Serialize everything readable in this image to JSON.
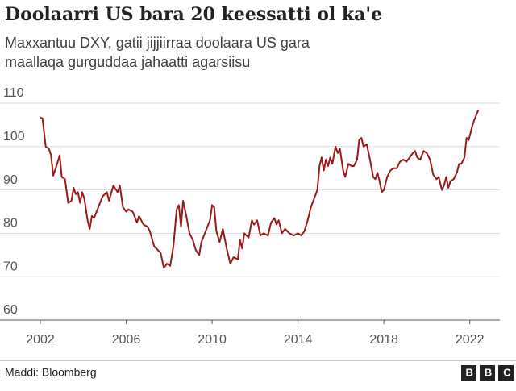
{
  "chart_data": {
    "type": "line",
    "title": "Doolaarri US bara 20 keessatti ol ka'e",
    "subtitle": "Maxxantuu DXY, gatii jijjiirraa doolaara US gara maallaqa gurguddaa jahaatti agarsiisu",
    "source": "Maddi: Bloomberg",
    "logo": "BBC",
    "xlim": [
      2002,
      2023.4
    ],
    "xticks": [
      2002,
      2006,
      2010,
      2014,
      2018,
      2022
    ],
    "ylim": [
      60,
      110
    ],
    "yticks": [
      60,
      70,
      80,
      90,
      100,
      110
    ],
    "grid": true,
    "x": [
      2002.0,
      2002.1,
      2002.25,
      2002.4,
      2002.5,
      2002.6,
      2002.75,
      2002.9,
      2003.0,
      2003.15,
      2003.3,
      2003.45,
      2003.55,
      2003.65,
      2003.75,
      2003.85,
      2003.95,
      2004.05,
      2004.2,
      2004.3,
      2004.4,
      2004.5,
      2004.7,
      2004.9,
      2005.1,
      2005.2,
      2005.4,
      2005.6,
      2005.7,
      2005.85,
      2006.0,
      2006.1,
      2006.3,
      2006.5,
      2006.6,
      2006.8,
      2007.0,
      2007.1,
      2007.3,
      2007.5,
      2007.6,
      2007.75,
      2007.9,
      2008.05,
      2008.2,
      2008.35,
      2008.45,
      2008.55,
      2008.65,
      2008.8,
      2008.95,
      2009.1,
      2009.25,
      2009.4,
      2009.5,
      2009.7,
      2009.9,
      2010.0,
      2010.1,
      2010.2,
      2010.35,
      2010.5,
      2010.7,
      2010.85,
      2011.0,
      2011.2,
      2011.3,
      2011.4,
      2011.5,
      2011.7,
      2011.85,
      2011.95,
      2012.1,
      2012.25,
      2012.4,
      2012.6,
      2012.75,
      2012.9,
      2013.0,
      2013.1,
      2013.25,
      2013.4,
      2013.6,
      2013.8,
      2014.0,
      2014.15,
      2014.3,
      2014.45,
      2014.6,
      2014.75,
      2014.9,
      2015.0,
      2015.1,
      2015.2,
      2015.3,
      2015.4,
      2015.5,
      2015.6,
      2015.75,
      2015.85,
      2015.95,
      2016.1,
      2016.2,
      2016.35,
      2016.5,
      2016.6,
      2016.75,
      2016.85,
      2016.95,
      2017.05,
      2017.2,
      2017.35,
      2017.5,
      2017.6,
      2017.7,
      2017.8,
      2017.9,
      2018.0,
      2018.15,
      2018.3,
      2018.45,
      2018.6,
      2018.75,
      2018.9,
      2019.05,
      2019.2,
      2019.35,
      2019.45,
      2019.55,
      2019.7,
      2019.85,
      2020.0,
      2020.15,
      2020.3,
      2020.45,
      2020.55,
      2020.7,
      2020.8,
      2020.9,
      2021.0,
      2021.1,
      2021.25,
      2021.4,
      2021.5,
      2021.6,
      2021.75,
      2021.85,
      2021.95,
      2022.1,
      2022.2,
      2022.4
    ],
    "series": [
      {
        "name": "DXY",
        "color": "#9b1a1a",
        "values": [
          106.7,
          106.5,
          100,
          99.5,
          98,
          93.3,
          95.5,
          98,
          93,
          92.5,
          87,
          87.5,
          90.5,
          89,
          89.5,
          87,
          89.5,
          88,
          83,
          81,
          84,
          83.5,
          86,
          88.5,
          89.5,
          87.5,
          91,
          89.5,
          91,
          86,
          85,
          85.5,
          85,
          82.5,
          84,
          82,
          81.5,
          80.5,
          77,
          76,
          75.5,
          72,
          73,
          72.5,
          77,
          85.5,
          86.5,
          81.5,
          87.5,
          84,
          80,
          78.5,
          76,
          75,
          78,
          80.5,
          83,
          86.5,
          86,
          80.5,
          78,
          81,
          76,
          73,
          74.5,
          74,
          78.5,
          76.5,
          80,
          79,
          83,
          82,
          83,
          79.5,
          80,
          79.5,
          82.5,
          83.5,
          82,
          83,
          80,
          81,
          80,
          79.5,
          80,
          79.5,
          80.5,
          83,
          86,
          88,
          90,
          95.5,
          97.5,
          94.5,
          97,
          95.5,
          97.5,
          96,
          100,
          98.5,
          99.5,
          94.5,
          93,
          96,
          95.5,
          95.5,
          97,
          101.5,
          102,
          100,
          100.5,
          97,
          93,
          92.5,
          94,
          92,
          89.5,
          90,
          93,
          94.5,
          95,
          95,
          96.5,
          97,
          96.5,
          97.5,
          98.5,
          99,
          97.5,
          97,
          99,
          98.5,
          97,
          93.5,
          92.5,
          93,
          90,
          91,
          93,
          90.5,
          92,
          92.5,
          94,
          96,
          96,
          97.5,
          102,
          101.5,
          104.5,
          106,
          108.5
        ]
      }
    ]
  }
}
